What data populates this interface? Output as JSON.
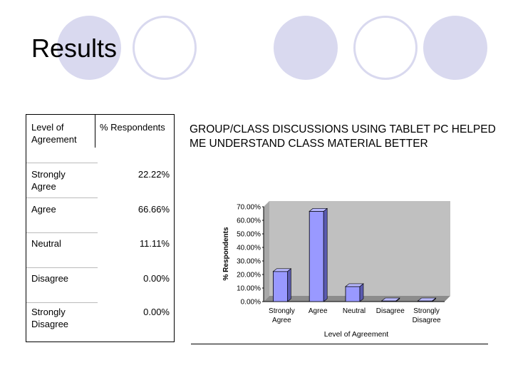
{
  "slide": {
    "title": "Results"
  },
  "table": {
    "headers": [
      "Level of Agreement",
      "% Respondents"
    ],
    "rows": [
      {
        "level": "Strongly Agree",
        "percent": "22.22%"
      },
      {
        "level": "Agree",
        "percent": "66.66%"
      },
      {
        "level": "Neutral",
        "percent": "11.11%"
      },
      {
        "level": "Disagree",
        "percent": "0.00%"
      },
      {
        "level": "Strongly Disagree",
        "percent": "0.00%"
      }
    ]
  },
  "chart_data": {
    "type": "bar",
    "title": "GROUP/CLASS DISCUSSIONS USING TABLET PC HELPED ME UNDERSTAND CLASS MATERIAL BETTER",
    "categories": [
      "Strongly Agree",
      "Agree",
      "Neutral",
      "Disagree",
      "Strongly Disagree"
    ],
    "values": [
      22.22,
      66.66,
      11.11,
      0.0,
      0.0
    ],
    "xlabel": "Level of Agreement",
    "ylabel": "% Respondents",
    "ylim": [
      0,
      70
    ],
    "yticks": [
      "0.00%",
      "10.00%",
      "20.00%",
      "30.00%",
      "40.00%",
      "50.00%",
      "60.00%",
      "70.00%"
    ],
    "grid": false,
    "colors": {
      "bar": "#9999ff",
      "bar_side": "#5a5ab0",
      "plot_bg": "#c0c0c0"
    }
  }
}
